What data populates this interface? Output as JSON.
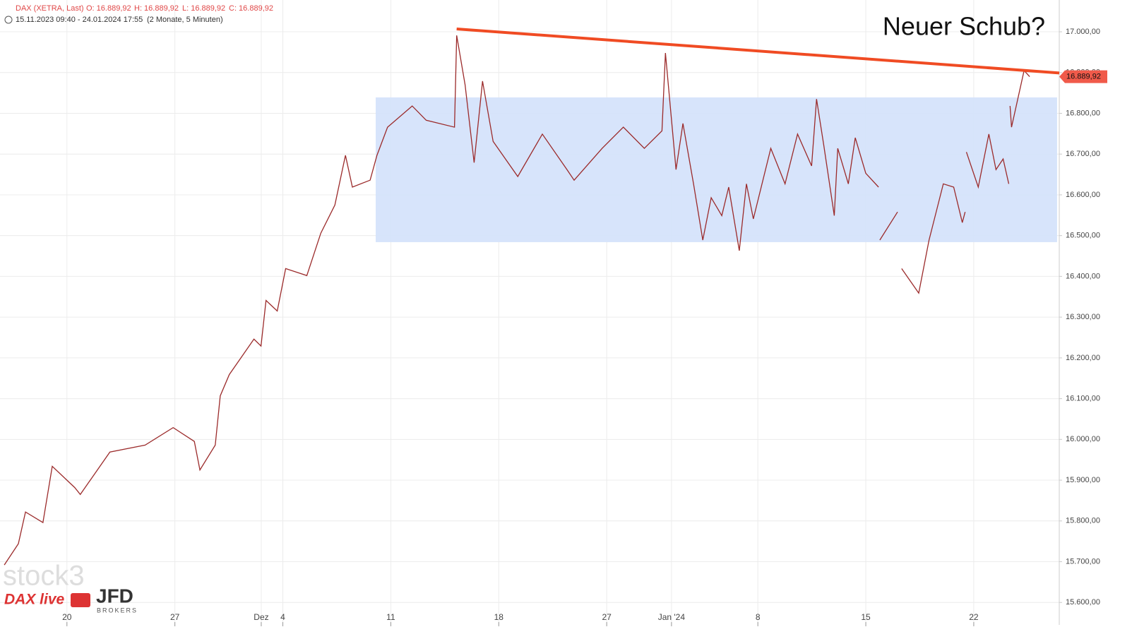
{
  "chart_data": {
    "type": "line",
    "header": {
      "instrument": "DAX (XETRA, Last)",
      "open": "O: 16.889,92",
      "high": "H: 16.889,92",
      "low": "L: 16.889,92",
      "close": "C: 16.889,92",
      "period": "15.11.2023 09:40 - 24.01.2024 17:55",
      "interval": "(2 Monate, 5 Minuten)"
    },
    "annotation": "Neuer Schub?",
    "logos": [
      "stock3",
      "DAX live",
      "JFD",
      "BROKERS"
    ],
    "xlim": [
      -0.1,
      48.96
    ],
    "ylim": [
      15545,
      17078
    ],
    "grid": true,
    "xticks": [
      {
        "value": 3,
        "label": "20"
      },
      {
        "value": 8,
        "label": "27"
      },
      {
        "value": 12,
        "label": "Dez"
      },
      {
        "value": 13,
        "label": "4"
      },
      {
        "value": 18,
        "label": "11"
      },
      {
        "value": 23,
        "label": "18"
      },
      {
        "value": 28,
        "label": "27"
      },
      {
        "value": 31,
        "label": "Jan '24"
      },
      {
        "value": 35,
        "label": "8"
      },
      {
        "value": 40,
        "label": "15"
      },
      {
        "value": 45,
        "label": "22"
      }
    ],
    "yticks": [
      {
        "value": 15600,
        "label": "15.600,00"
      },
      {
        "value": 15700,
        "label": "15.700,00"
      },
      {
        "value": 15800,
        "label": "15.800,00"
      },
      {
        "value": 15900,
        "label": "15.900,00"
      },
      {
        "value": 16000,
        "label": "16.000,00"
      },
      {
        "value": 16100,
        "label": "16.100,00"
      },
      {
        "value": 16200,
        "label": "16.200,00"
      },
      {
        "value": 16300,
        "label": "16.300,00"
      },
      {
        "value": 16400,
        "label": "16.400,00"
      },
      {
        "value": 16500,
        "label": "16.500,00"
      },
      {
        "value": 16600,
        "label": "16.600,00"
      },
      {
        "value": 16700,
        "label": "16.700,00"
      },
      {
        "value": 16800,
        "label": "16.800,00"
      },
      {
        "value": 16900,
        "label": "16.900,00"
      },
      {
        "value": 17000,
        "label": "17.000,00"
      }
    ],
    "series": [
      {
        "color": "#9b2a2a",
        "x": [
          0.1,
          0.75,
          1.08,
          1.89,
          2.32,
          3.36,
          3.62,
          4.99,
          6.62,
          7.92,
          8.9,
          9.16,
          9.87,
          10.1,
          10.52,
          11.66,
          11.99,
          12.22,
          12.74,
          13.13,
          14.11,
          14.76,
          15.41,
          15.9,
          16.22,
          17.04,
          17.36,
          17.85,
          18.99,
          19.64,
          20.95,
          21.05,
          21.44,
          21.86,
          22.25,
          22.74,
          23.88,
          25.02,
          26.16,
          26.49,
          27.79,
          28.77,
          29.74,
          30.56,
          30.72,
          31.21,
          31.53,
          32.02,
          32.45,
          32.84,
          33.33,
          33.65,
          34.14,
          34.47,
          34.79,
          35.6,
          36.26,
          36.84,
          37.49,
          37.72,
          38.05,
          38.54,
          38.7,
          39.19,
          39.51,
          40.0,
          40.59,
          40.62,
          40.65,
          41.47,
          41.56,
          41.66,
          42.45,
          42.93,
          43.59,
          44.07,
          44.47,
          44.6,
          44.63,
          44.66,
          45.21,
          45.7,
          46.03,
          46.36,
          46.62,
          46.65,
          46.68,
          46.75,
          47.33,
          47.59
        ],
        "values": [
          15692,
          15744,
          15822,
          15796,
          15934,
          15882,
          15865,
          15969,
          15986,
          16029,
          15995,
          15925,
          15986,
          16107,
          16159,
          16246,
          16229,
          16341,
          16315,
          16419,
          16402,
          16506,
          16575,
          16697,
          16619,
          16636,
          16697,
          16766,
          16818,
          16783,
          16766,
          16991,
          16870,
          16679,
          16879,
          16731,
          16645,
          16749,
          16662,
          16636,
          16714,
          16766,
          16714,
          16757,
          16948,
          16662,
          16775,
          16627,
          16489,
          16593,
          16549,
          16619,
          16463,
          16627,
          16541,
          16714,
          16627,
          16749,
          16671,
          16835,
          16723,
          16549,
          16714,
          16627,
          16740,
          16653,
          16619,
          null,
          16489,
          16558,
          null,
          16419,
          16359,
          16489,
          16627,
          16619,
          16532,
          16558,
          null,
          16705,
          16619,
          16749,
          16662,
          16688,
          16627,
          null,
          16818,
          16766,
          16905,
          16889.92
        ]
      }
    ],
    "trendline": {
      "color": "#f04b23",
      "x": [
        21.05,
        48.96
      ],
      "values": [
        17007,
        16899
      ]
    },
    "range_box": {
      "color": "#d5e3fb",
      "x_range": [
        17.3,
        48.86
      ],
      "y_range": [
        16484,
        16839
      ]
    },
    "last_price": {
      "value": 16889.92,
      "label": "16.889,92",
      "color": "#f05a4a"
    }
  }
}
